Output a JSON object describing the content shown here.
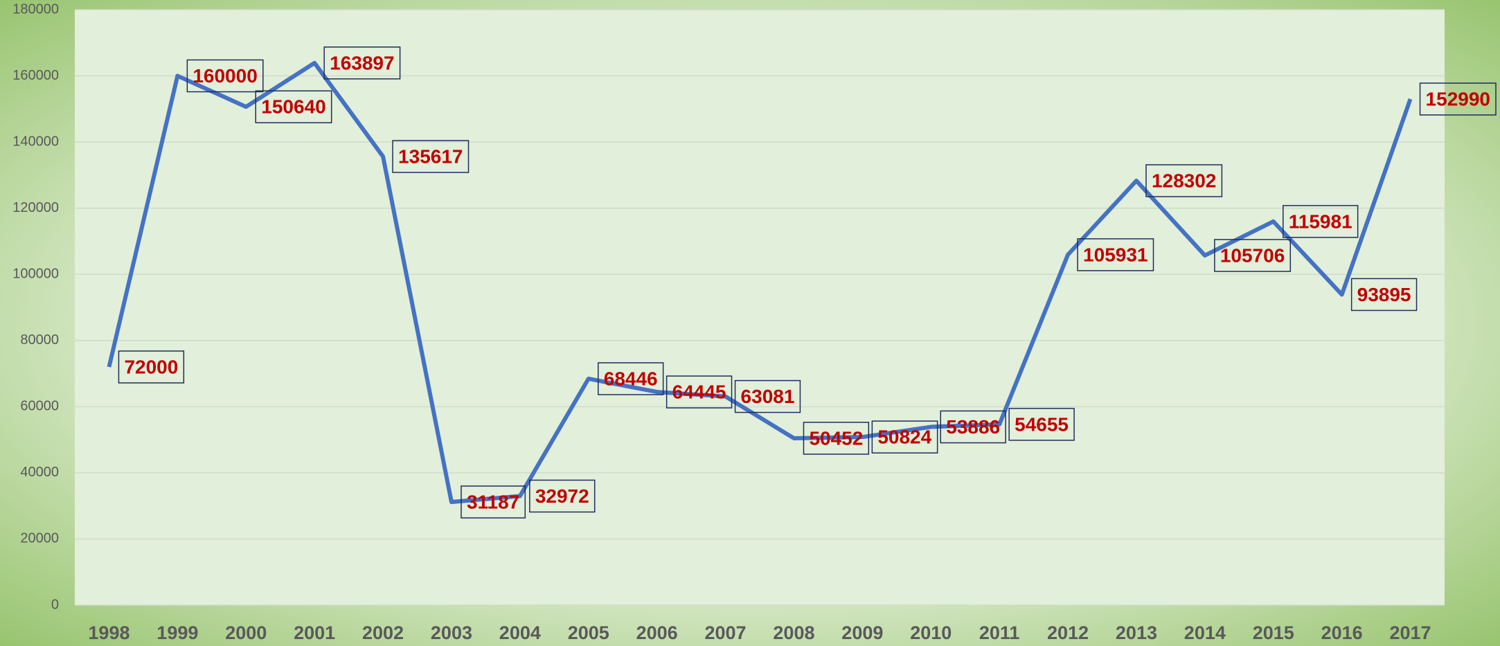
{
  "chart_data": {
    "type": "line",
    "categories": [
      "1998",
      "1999",
      "2000",
      "2001",
      "2002",
      "2003",
      "2004",
      "2005",
      "2006",
      "2007",
      "2008",
      "2009",
      "2010",
      "2011",
      "2012",
      "2013",
      "2014",
      "2015",
      "2016",
      "2017"
    ],
    "series": [
      {
        "color": "#4472c4",
        "values": [
          72000,
          160000,
          150640,
          163897,
          135617,
          31187,
          32972,
          68446,
          64445,
          63081,
          50452,
          50824,
          53886,
          54655,
          105931,
          128302,
          105706,
          115981,
          93895,
          152990
        ]
      }
    ],
    "ylim": [
      0,
      180000
    ],
    "yticks": [
      0,
      20000,
      40000,
      60000,
      80000,
      100000,
      120000,
      140000,
      160000,
      180000
    ],
    "grid": true
  }
}
